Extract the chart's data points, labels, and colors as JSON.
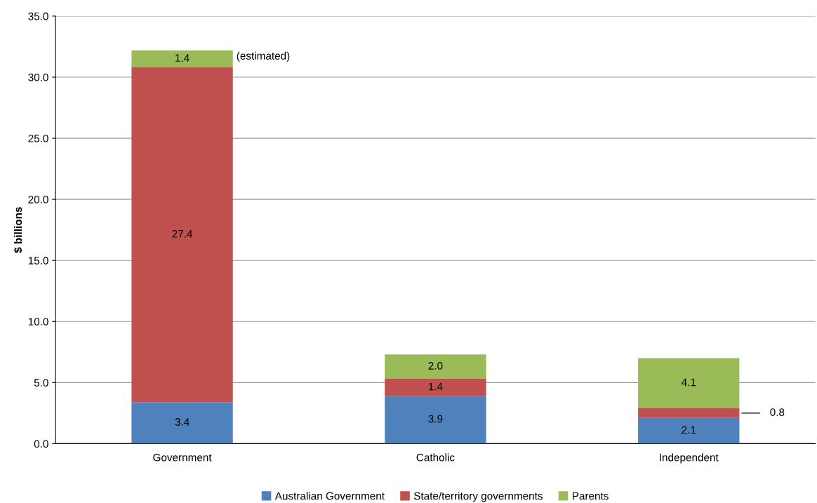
{
  "chart_data": {
    "type": "bar",
    "stacked": true,
    "categories": [
      "Government",
      "Catholic",
      "Independent"
    ],
    "series": [
      {
        "name": "Australian Government",
        "color": "#4f81bd",
        "values": [
          3.4,
          3.9,
          2.1
        ],
        "value_labels": [
          "3.4",
          "3.9",
          "2.1"
        ]
      },
      {
        "name": "State/territory governments",
        "color": "#c0504d",
        "values": [
          27.4,
          1.4,
          0.8
        ],
        "value_labels": [
          "27.4",
          "1.4",
          "0.8"
        ]
      },
      {
        "name": "Parents",
        "color": "#9bbb59",
        "values": [
          1.4,
          2.0,
          4.1
        ],
        "value_labels": [
          "1.4",
          "2.0",
          "4.1"
        ]
      }
    ],
    "ylabel": "$ billions",
    "ylim": [
      0,
      35
    ],
    "yticks": [
      {
        "value": 0,
        "label": "0.0"
      },
      {
        "value": 5,
        "label": "5.0"
      },
      {
        "value": 10,
        "label": "10.0"
      },
      {
        "value": 15,
        "label": "15.0"
      },
      {
        "value": 20,
        "label": "20.0"
      },
      {
        "value": 25,
        "label": "25.0"
      },
      {
        "value": 30,
        "label": "30.0"
      },
      {
        "value": 35,
        "label": "35.0"
      }
    ],
    "grid": "y",
    "legend": "bottom",
    "annotations": [
      "(estimated)"
    ]
  }
}
